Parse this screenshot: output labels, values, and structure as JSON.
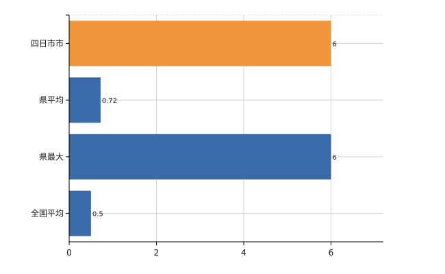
{
  "chart_data": {
    "type": "bar",
    "orientation": "horizontal",
    "categories": [
      "四日市市",
      "県平均",
      "県最大",
      "全国平均"
    ],
    "values": [
      6,
      0.72,
      6,
      0.5
    ],
    "value_labels": [
      "6",
      "0.72",
      "6",
      "0.5"
    ],
    "bar_colors": [
      "#f0963a",
      "#3a6aa8",
      "#3a6aa8",
      "#3a6aa8"
    ],
    "xlim": [
      0,
      7.2
    ],
    "xticks": [
      0,
      2,
      4,
      6
    ],
    "grid": true,
    "legend": "none",
    "title": "",
    "xlabel": "",
    "ylabel": ""
  }
}
